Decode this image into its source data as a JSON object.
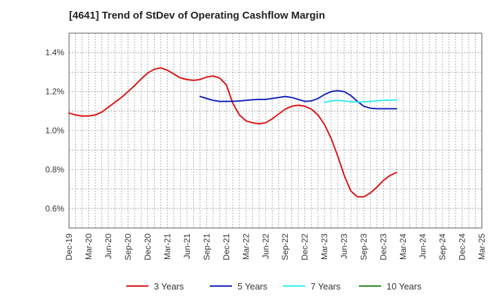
{
  "chart_data": {
    "type": "line",
    "title": "[4641]  Trend of StDev of Operating Cashflow Margin",
    "xlabel": "",
    "ylabel": "",
    "ylim": [
      0.5,
      1.5
    ],
    "y_ticks": [
      {
        "value": 0.6,
        "label": "0.6%"
      },
      {
        "value": 0.8,
        "label": "0.8%"
      },
      {
        "value": 1.0,
        "label": "1.0%"
      },
      {
        "value": 1.2,
        "label": "1.2%"
      },
      {
        "value": 1.4,
        "label": "1.4%"
      }
    ],
    "x_tick_labels": [
      "Dec-19",
      "Mar-20",
      "Jun-20",
      "Sep-20",
      "Dec-20",
      "Mar-21",
      "Jun-21",
      "Sep-21",
      "Dec-21",
      "Mar-22",
      "Jun-22",
      "Sep-22",
      "Dec-22",
      "Mar-23",
      "Jun-23",
      "Sep-23",
      "Dec-23",
      "Mar-24",
      "Jun-24",
      "Sep-24",
      "Dec-24",
      "Mar-25"
    ],
    "grid": true,
    "legend_position": "bottom",
    "series": [
      {
        "name": "3 Years",
        "color": "#dd1111",
        "values": [
          1.09,
          1.08,
          1.075,
          1.075,
          1.08,
          1.095,
          1.12,
          1.145,
          1.17,
          1.2,
          1.23,
          1.265,
          1.295,
          1.315,
          1.322,
          1.31,
          1.29,
          1.27,
          1.262,
          1.258,
          1.262,
          1.275,
          1.28,
          1.27,
          1.235,
          1.14,
          1.08,
          1.05,
          1.04,
          1.035,
          1.04,
          1.06,
          1.085,
          1.11,
          1.125,
          1.13,
          1.125,
          1.11,
          1.08,
          1.03,
          0.96,
          0.87,
          0.77,
          0.69,
          0.66,
          0.66,
          0.68,
          0.71,
          0.745,
          0.77,
          0.785
        ]
      },
      {
        "name": "5 Years",
        "color": "#1122bb",
        "values": [
          null,
          null,
          null,
          null,
          null,
          null,
          null,
          null,
          null,
          null,
          null,
          null,
          null,
          null,
          null,
          null,
          null,
          null,
          null,
          null,
          1.175,
          1.165,
          1.155,
          1.15,
          1.15,
          1.15,
          1.152,
          1.155,
          1.158,
          1.16,
          1.16,
          1.165,
          1.17,
          1.175,
          1.17,
          1.16,
          1.15,
          1.152,
          1.165,
          1.185,
          1.2,
          1.205,
          1.2,
          1.18,
          1.15,
          1.125,
          1.115,
          1.112,
          1.112,
          1.112,
          1.112
        ]
      },
      {
        "name": "7 Years",
        "color": "#33eeee",
        "values": [
          null,
          null,
          null,
          null,
          null,
          null,
          null,
          null,
          null,
          null,
          null,
          null,
          null,
          null,
          null,
          null,
          null,
          null,
          null,
          null,
          null,
          null,
          null,
          null,
          null,
          null,
          null,
          null,
          null,
          null,
          null,
          null,
          null,
          null,
          null,
          null,
          null,
          null,
          null,
          1.145,
          1.152,
          1.155,
          1.152,
          1.148,
          1.146,
          1.148,
          1.15,
          1.153,
          1.155,
          1.156,
          1.157
        ]
      },
      {
        "name": "10 Years",
        "color": "#228822",
        "values": []
      }
    ]
  }
}
